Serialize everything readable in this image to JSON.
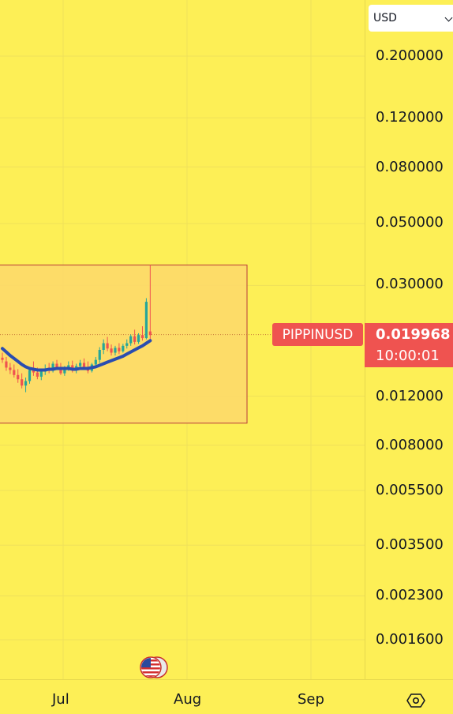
{
  "colors": {
    "background": "#fdef56",
    "grid": "#efe05a",
    "box_fill": "#fdd86b",
    "box_border": "#b83a3a",
    "up_candle": "#26a69a",
    "down_candle": "#ef5350",
    "ma_line": "#2a4db0",
    "price_tag": "#ef5350"
  },
  "currency": {
    "selected": "USD"
  },
  "symbol": "PIPPINUSD",
  "last_price": "0.019968",
  "countdown": "10:00:01",
  "price_axis": {
    "scale": "log",
    "labels": [
      "0.200000",
      "0.120000",
      "0.080000",
      "0.050000",
      "0.030000",
      "0.012000",
      "0.008000",
      "0.005500",
      "0.003500",
      "0.002300",
      "0.001600"
    ]
  },
  "time_axis": {
    "labels": [
      "Jul",
      "Aug",
      "Sep"
    ]
  },
  "icons": {
    "event": "us-flag-icon",
    "settings": "settings-icon"
  },
  "chart_data": {
    "type": "candlestick",
    "x_labels": [
      "Jul",
      "Aug",
      "Sep"
    ],
    "y_scale": "log",
    "y_ticks": [
      0.2,
      0.12,
      0.08,
      0.05,
      0.03,
      0.012,
      0.008,
      0.0055,
      0.0035,
      0.0023,
      0.0016
    ],
    "ylim": [
      0.00135,
      0.26
    ],
    "last_price": 0.019968,
    "highlight_box": {
      "price_high": 0.0355,
      "price_low": 0.0096
    },
    "candles": [
      [
        0.0165,
        0.0172,
        0.0158,
        0.0162
      ],
      [
        0.016,
        0.0166,
        0.0148,
        0.0152
      ],
      [
        0.0152,
        0.0158,
        0.0144,
        0.0149
      ],
      [
        0.0149,
        0.0156,
        0.014,
        0.0143
      ],
      [
        0.0143,
        0.015,
        0.0134,
        0.0138
      ],
      [
        0.0138,
        0.0145,
        0.0128,
        0.0131
      ],
      [
        0.0131,
        0.014,
        0.0124,
        0.0136
      ],
      [
        0.0136,
        0.0152,
        0.0133,
        0.0149
      ],
      [
        0.0149,
        0.016,
        0.0142,
        0.0146
      ],
      [
        0.0146,
        0.0152,
        0.0138,
        0.0141
      ],
      [
        0.0141,
        0.015,
        0.0137,
        0.0147
      ],
      [
        0.0147,
        0.0156,
        0.0143,
        0.0151
      ],
      [
        0.0151,
        0.0158,
        0.0145,
        0.0148
      ],
      [
        0.0148,
        0.016,
        0.0146,
        0.0157
      ],
      [
        0.0157,
        0.0162,
        0.0149,
        0.0152
      ],
      [
        0.0152,
        0.0158,
        0.0143,
        0.0145
      ],
      [
        0.0145,
        0.0154,
        0.0142,
        0.0151
      ],
      [
        0.0151,
        0.016,
        0.0148,
        0.0155
      ],
      [
        0.0155,
        0.0161,
        0.0146,
        0.0149
      ],
      [
        0.0149,
        0.0157,
        0.0145,
        0.0154
      ],
      [
        0.0154,
        0.0162,
        0.015,
        0.0158
      ],
      [
        0.0158,
        0.0164,
        0.015,
        0.0153
      ],
      [
        0.0153,
        0.016,
        0.0145,
        0.0148
      ],
      [
        0.0148,
        0.0158,
        0.0146,
        0.0156
      ],
      [
        0.0156,
        0.0166,
        0.0153,
        0.0162
      ],
      [
        0.0162,
        0.018,
        0.0158,
        0.0176
      ],
      [
        0.0176,
        0.0192,
        0.017,
        0.0186
      ],
      [
        0.0186,
        0.0196,
        0.0174,
        0.0178
      ],
      [
        0.0178,
        0.0184,
        0.0168,
        0.0172
      ],
      [
        0.0172,
        0.0182,
        0.0168,
        0.0179
      ],
      [
        0.0179,
        0.0186,
        0.017,
        0.0174
      ],
      [
        0.0174,
        0.0185,
        0.0172,
        0.0182
      ],
      [
        0.0182,
        0.0192,
        0.0178,
        0.0186
      ],
      [
        0.0186,
        0.02,
        0.0182,
        0.0197
      ],
      [
        0.0197,
        0.0208,
        0.0184,
        0.0188
      ],
      [
        0.0188,
        0.0202,
        0.0185,
        0.0199
      ],
      [
        0.0199,
        0.0214,
        0.019,
        0.0194
      ],
      [
        0.0194,
        0.027,
        0.0192,
        0.0262
      ],
      [
        0.0205,
        0.0355,
        0.0188,
        0.0199
      ]
    ],
    "moving_average": [
      0.0178,
      0.0173,
      0.0168,
      0.0164,
      0.016,
      0.0156,
      0.0153,
      0.0151,
      0.015,
      0.0149,
      0.0149,
      0.0149,
      0.015,
      0.015,
      0.0151,
      0.0151,
      0.0151,
      0.0151,
      0.015,
      0.015,
      0.0151,
      0.0151,
      0.0151,
      0.0152,
      0.0153,
      0.0155,
      0.0157,
      0.0159,
      0.0161,
      0.0163,
      0.0165,
      0.0167,
      0.017,
      0.0173,
      0.0176,
      0.0179,
      0.0182,
      0.0186,
      0.019
    ]
  }
}
